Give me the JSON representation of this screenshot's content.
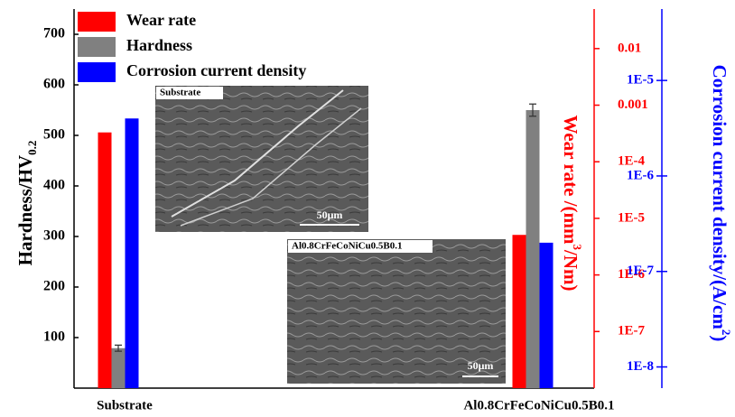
{
  "chart_data": {
    "type": "bar",
    "categories": [
      "Substrate",
      "Al0.8CrFeCoNiCu0.5B0.1"
    ],
    "series": [
      {
        "name": "Wear rate",
        "color": "#ff0000",
        "axis": "y2",
        "values": [
          0.00033,
          5.1e-06
        ]
      },
      {
        "name": "Hardness",
        "color": "#808080",
        "values": [
          79,
          550
        ],
        "errors": [
          6,
          12
        ]
      },
      {
        "name": "Corrosion current density",
        "color": "#0000ff",
        "axis": "y3",
        "values": [
          4e-06,
          2e-07
        ]
      }
    ],
    "ylabel": [
      "Hardness/HV",
      "0.2"
    ],
    "y2label": [
      "Wear rate /(mm",
      "3",
      "/Nm)"
    ],
    "y3label": [
      "Corrosion current density/(A/cm",
      "2",
      ")"
    ],
    "ylim": [
      0,
      750
    ],
    "yticks": [
      100,
      200,
      300,
      400,
      500,
      600,
      700
    ],
    "y2lim": [
      1e-08,
      0.05
    ],
    "y2log": true,
    "y2ticks": [
      {
        "value": 1e-07,
        "label": "1E-7"
      },
      {
        "value": 1e-06,
        "label": "1E-6"
      },
      {
        "value": 1e-05,
        "label": "1E-5"
      },
      {
        "value": 0.0001,
        "label": "1E-4"
      },
      0.001,
      0.01
    ],
    "y3lim": [
      6e-09,
      5.6e-05
    ],
    "y3log": true,
    "y3ticks": [
      {
        "value": 1e-08,
        "label": "1E-8"
      },
      {
        "value": 1e-07,
        "label": "1E-7"
      },
      {
        "value": 1e-06,
        "label": "1E-6"
      },
      {
        "value": 1e-05,
        "label": "1E-5"
      }
    ],
    "legend": "upper left",
    "insets": [
      {
        "label": "Substrate",
        "scale_bar": "50μm"
      },
      {
        "label": "Al0.8CrFeCoNiCu0.5B0.1",
        "scale_bar": "50μm"
      }
    ]
  }
}
